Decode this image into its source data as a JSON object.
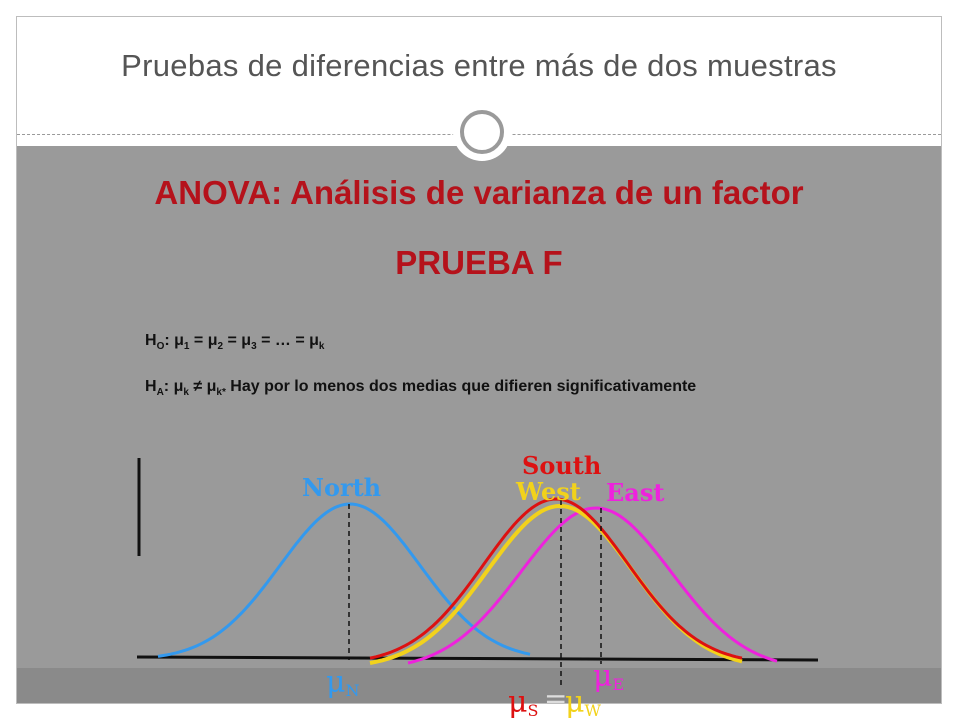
{
  "slide": {
    "title": "Pruebas de diferencias entre más de dos muestras",
    "heading": "ANOVA: Análisis de varianza de un factor",
    "subheading": "PRUEBA F"
  },
  "hypotheses": {
    "null": {
      "h": "H",
      "h_sub": "O",
      "expr": [
        {
          "t": ": μ",
          "s": "1"
        },
        {
          "t": " = μ",
          "s": "2"
        },
        {
          "t": " = μ",
          "s": "3"
        },
        {
          "t": " = … = μ",
          "s": "k"
        }
      ]
    },
    "alternative": {
      "h": "H",
      "h_sub": "A",
      "mu1": ": μ",
      "mu1_sub": "k",
      "neq": " ≠ μ",
      "mu2_sub": "k*",
      "text": " Hay por lo menos dos medias que difieren significativamente"
    }
  },
  "diagram": {
    "labels": {
      "north": "North",
      "south": "South",
      "west": "West",
      "east": "East"
    },
    "mean_labels": {
      "north": {
        "mu": "μ",
        "sub": "N"
      },
      "east": {
        "mu": "μ",
        "sub": "E"
      },
      "south": {
        "mu": "μ",
        "sub": "S"
      },
      "equals": "=",
      "west": {
        "mu": "μ",
        "sub": "W"
      }
    },
    "colors": {
      "north": "#3399ee",
      "south": "#dd1111",
      "west": "#f2d21b",
      "east": "#ee22dd",
      "heading": "#b5121b"
    }
  }
}
